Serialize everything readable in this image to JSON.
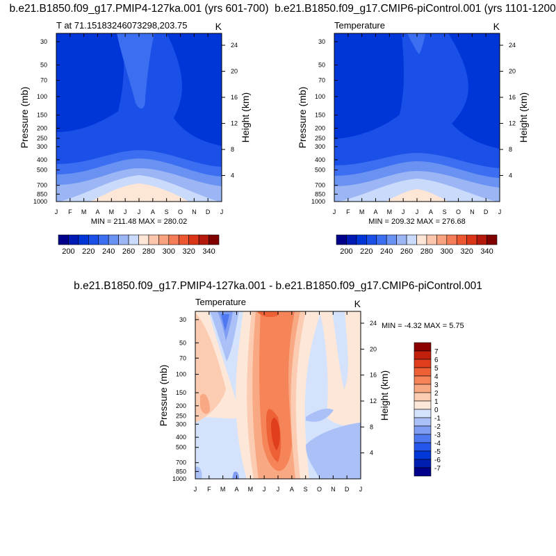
{
  "colors": {
    "abs_levels": [
      "#00008b",
      "#001bb4",
      "#0035d8",
      "#1a50e8",
      "#3b6ef0",
      "#6a92f2",
      "#9bb5f5",
      "#c9dafb",
      "#fde6d6",
      "#fbc6ab",
      "#f8a27f",
      "#f47c56",
      "#ec5732",
      "#db3518",
      "#b5190c",
      "#800000"
    ],
    "diff_levels": [
      "#00008b",
      "#001fb2",
      "#0037d9",
      "#2556ea",
      "#4e79f0",
      "#7f9ef3",
      "#aac0f6",
      "#d4e3fb",
      "#fde7d8",
      "#fbcbb2",
      "#f8a882",
      "#f58458",
      "#ee6036",
      "#e03e1c",
      "#c21f0c",
      "#8b0000"
    ]
  },
  "chart_data": [
    {
      "type": "heatmap",
      "title": "b.e21.B1850.f09_g17.PMIP4-127ka.001 (yrs 601-700)",
      "left_label": "T at 71.15183246073298,203.75",
      "right_label": "K",
      "ylabel": "Pressure (mb)",
      "ylabel_right": "Height (km)",
      "x_ticks": [
        "J",
        "F",
        "M",
        "A",
        "M",
        "J",
        "J",
        "A",
        "S",
        "O",
        "N",
        "D",
        "J"
      ],
      "y_ticks": [
        "30",
        "50",
        "70",
        "100",
        "150",
        "200",
        "250",
        "300",
        "400",
        "500",
        "700",
        "850",
        "1000"
      ],
      "y_ticks_right": [
        "24",
        "20",
        "16",
        "12",
        "8",
        "4"
      ],
      "ylim": [
        1000,
        25
      ],
      "stats": "MIN = 211.48 MAX = 280.02",
      "min": 211.48,
      "max": 280.02,
      "contour_levels": [
        200,
        210,
        220,
        230,
        240,
        250,
        260,
        270,
        280,
        290,
        300,
        310,
        320,
        330,
        340
      ],
      "colorbar_labels": [
        "200",
        "220",
        "240",
        "260",
        "280",
        "300",
        "320",
        "340"
      ]
    },
    {
      "type": "heatmap",
      "title": "b.e21.B1850.f09_g17.CMIP6-piControl.001 (yrs 1101-1200)",
      "left_label": "Temperature",
      "right_label": "K",
      "ylabel": "Pressure (mb)",
      "ylabel_right": "Height (km)",
      "x_ticks": [
        "J",
        "F",
        "M",
        "A",
        "M",
        "J",
        "J",
        "A",
        "S",
        "O",
        "N",
        "D",
        "J"
      ],
      "y_ticks": [
        "30",
        "50",
        "70",
        "100",
        "150",
        "200",
        "250",
        "300",
        "400",
        "500",
        "700",
        "850",
        "1000"
      ],
      "y_ticks_right": [
        "24",
        "20",
        "16",
        "12",
        "8",
        "4"
      ],
      "ylim": [
        1000,
        25
      ],
      "stats": "MIN = 209.32 MAX = 276.68",
      "min": 209.32,
      "max": 276.68,
      "contour_levels": [
        200,
        210,
        220,
        230,
        240,
        250,
        260,
        270,
        280,
        290,
        300,
        310,
        320,
        330,
        340
      ],
      "colorbar_labels": [
        "200",
        "220",
        "240",
        "260",
        "280",
        "300",
        "320",
        "340"
      ]
    },
    {
      "type": "heatmap",
      "title": "b.e21.B1850.f09_g17.PMIP4-127ka.001 - b.e21.B1850.f09_g17.CMIP6-piControl.001",
      "left_label": "Temperature",
      "right_label": "K",
      "ylabel": "Pressure (mb)",
      "ylabel_right": "Height (km)",
      "x_ticks": [
        "J",
        "F",
        "M",
        "A",
        "M",
        "J",
        "J",
        "A",
        "S",
        "O",
        "N",
        "D",
        "J"
      ],
      "y_ticks": [
        "30",
        "50",
        "70",
        "100",
        "150",
        "200",
        "250",
        "300",
        "400",
        "500",
        "700",
        "850",
        "1000"
      ],
      "y_ticks_right": [
        "24",
        "20",
        "16",
        "12",
        "8",
        "4"
      ],
      "ylim": [
        1000,
        25
      ],
      "stats": "MIN =  -4.32 MAX =   5.75",
      "min": -4.32,
      "max": 5.75,
      "contour_levels": [
        -7,
        -6,
        -5,
        -4,
        -3,
        -2,
        -1,
        0,
        1,
        2,
        3,
        4,
        5,
        6,
        7
      ],
      "colorbar_labels": [
        "7",
        "6",
        "5",
        "4",
        "3",
        "2",
        "1",
        "0",
        "-1",
        "-2",
        "-3",
        "-4",
        "-5",
        "-6",
        "-7"
      ]
    }
  ]
}
